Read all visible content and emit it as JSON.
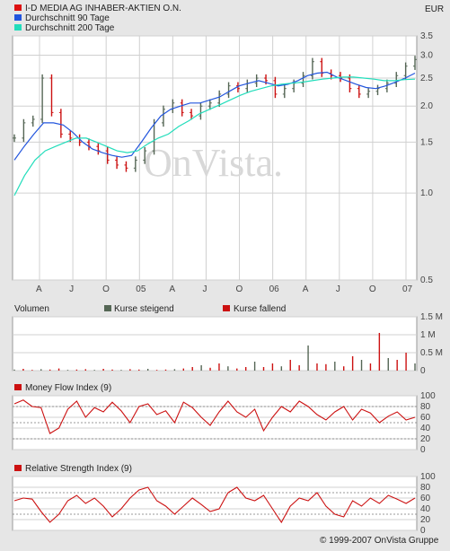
{
  "currency": "EUR",
  "copyright": "© 1999-2007 OnVista Gruppe",
  "watermark": "OnVista.",
  "legend": [
    {
      "label": "I-D MEDIA AG INHABER-AKTIEN O.N.",
      "color": "#dd1111"
    },
    {
      "label": "Durchschnitt 90 Tage",
      "color": "#2255dd"
    },
    {
      "label": "Durchschnitt 200 Tage",
      "color": "#22ddbb"
    }
  ],
  "colors": {
    "up": "#556655",
    "down": "#cc1111",
    "ma90": "#2255dd",
    "ma200": "#22ddbb",
    "indicator": "#cc1111"
  },
  "chart_data": [
    {
      "type": "line",
      "name": "price",
      "x_ticks": [
        "A",
        "J",
        "O",
        "05",
        "A",
        "J",
        "O",
        "06",
        "A",
        "J",
        "O",
        "07"
      ],
      "y_ticks": [
        "3.5",
        "3.0",
        "2.5",
        "2.0",
        "1.5",
        "1.0",
        "0.5"
      ],
      "ylim": [
        0.5,
        3.5
      ],
      "yscale": "log",
      "grid": true,
      "series": [
        {
          "name": "I-D MEDIA AG INHABER-AKTIEN O.N.",
          "values": [
            1.55,
            1.75,
            1.8,
            2.5,
            1.9,
            1.6,
            1.55,
            1.5,
            1.45,
            1.4,
            1.3,
            1.25,
            1.22,
            1.3,
            1.4,
            1.75,
            1.95,
            2.05,
            1.9,
            1.85,
            2.0,
            2.05,
            2.2,
            2.35,
            2.3,
            2.4,
            2.5,
            2.45,
            2.2,
            2.3,
            2.4,
            2.55,
            2.85,
            2.6,
            2.55,
            2.5,
            2.3,
            2.2,
            2.25,
            2.3,
            2.4,
            2.55,
            2.75,
            2.9
          ]
        },
        {
          "name": "Durchschnitt 90 Tage",
          "values": [
            1.3,
            1.45,
            1.6,
            1.75,
            1.75,
            1.72,
            1.62,
            1.5,
            1.42,
            1.38,
            1.35,
            1.33,
            1.35,
            1.5,
            1.68,
            1.85,
            1.95,
            2.0,
            2.05,
            2.05,
            2.1,
            2.15,
            2.25,
            2.35,
            2.4,
            2.45,
            2.4,
            2.35,
            2.38,
            2.45,
            2.55,
            2.6,
            2.62,
            2.52,
            2.45,
            2.38,
            2.32,
            2.3,
            2.35,
            2.42,
            2.5,
            2.6
          ]
        },
        {
          "name": "Durchschnitt 200 Tage",
          "values": [
            0.98,
            1.15,
            1.3,
            1.4,
            1.45,
            1.5,
            1.55,
            1.55,
            1.5,
            1.45,
            1.4,
            1.38,
            1.4,
            1.48,
            1.55,
            1.6,
            1.7,
            1.78,
            1.88,
            1.95,
            2.02,
            2.1,
            2.18,
            2.25,
            2.3,
            2.35,
            2.38,
            2.4,
            2.42,
            2.45,
            2.48,
            2.5,
            2.52,
            2.52,
            2.5,
            2.48,
            2.45,
            2.45,
            2.47,
            2.48
          ]
        }
      ]
    },
    {
      "type": "bar",
      "name": "volume",
      "title": "Volumen",
      "legend": [
        "Kurse steigend",
        "Kurse fallend"
      ],
      "y_ticks": [
        "1.5 M",
        "1 M",
        "0.5 M",
        "0"
      ],
      "ylim": [
        0,
        1.5
      ],
      "values": [
        0.03,
        0.05,
        0.02,
        0.04,
        0.03,
        0.06,
        0.02,
        0.03,
        0.04,
        0.02,
        0.05,
        0.03,
        0.02,
        0.04,
        0.03,
        0.05,
        0.02,
        0.03,
        0.04,
        0.06,
        0.1,
        0.15,
        0.08,
        0.2,
        0.12,
        0.06,
        0.1,
        0.25,
        0.1,
        0.2,
        0.12,
        0.3,
        0.15,
        0.7,
        0.2,
        0.18,
        0.25,
        0.12,
        0.4,
        0.3,
        0.2,
        1.05,
        0.35,
        0.3,
        0.5,
        0.2
      ]
    },
    {
      "type": "line",
      "name": "mfi",
      "title": "Money Flow Index (9)",
      "y_ticks": [
        "100",
        "80",
        "60",
        "40",
        "20",
        "0"
      ],
      "ylim": [
        0,
        100
      ],
      "values": [
        85,
        92,
        80,
        78,
        30,
        40,
        75,
        90,
        60,
        78,
        70,
        88,
        72,
        50,
        80,
        85,
        65,
        72,
        50,
        88,
        78,
        60,
        45,
        70,
        90,
        70,
        60,
        75,
        35,
        60,
        80,
        70,
        90,
        80,
        65,
        55,
        70,
        80,
        55,
        75,
        68,
        50,
        62,
        70,
        55,
        60
      ]
    },
    {
      "type": "line",
      "name": "rsi",
      "title": "Relative Strength Index (9)",
      "y_ticks": [
        "100",
        "80",
        "60",
        "40",
        "20",
        "0"
      ],
      "ylim": [
        0,
        100
      ],
      "values": [
        55,
        60,
        58,
        35,
        15,
        30,
        55,
        65,
        50,
        60,
        45,
        25,
        40,
        60,
        75,
        80,
        55,
        45,
        30,
        45,
        60,
        48,
        35,
        40,
        70,
        80,
        60,
        55,
        65,
        40,
        15,
        45,
        60,
        55,
        70,
        45,
        30,
        25,
        55,
        45,
        60,
        50,
        65,
        58,
        50,
        60
      ]
    }
  ]
}
